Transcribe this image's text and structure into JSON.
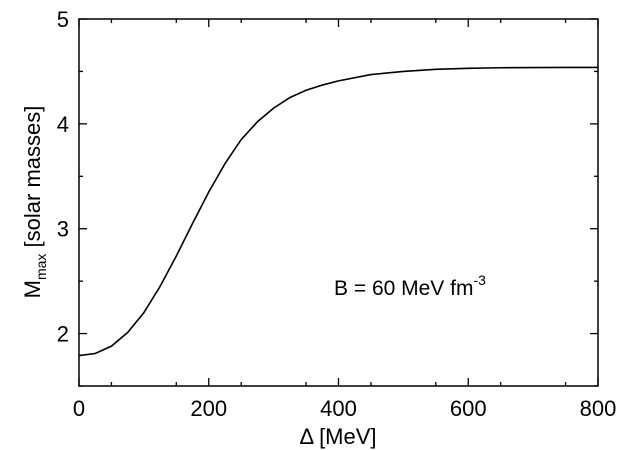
{
  "chart_data": {
    "type": "line",
    "title": "",
    "xlabel": "Δ [MeV]",
    "ylabel": {
      "main": "M",
      "sub": "max",
      "rest": " [solar masses]"
    },
    "xlim": [
      0,
      800
    ],
    "ylim": [
      1.5,
      5.0
    ],
    "x_ticks": [
      0,
      200,
      400,
      600,
      800
    ],
    "x_tick_labels": [
      "0",
      "200",
      "400",
      "600",
      "800"
    ],
    "y_ticks": [
      2,
      3,
      4,
      5
    ],
    "y_tick_labels": [
      "2",
      "3",
      "4",
      "5"
    ],
    "grid": false,
    "annotation": {
      "text": "B = 60 MeV fm",
      "superscript": "-3"
    },
    "series": [
      {
        "x": [
          0,
          25,
          50,
          75,
          100,
          125,
          150,
          175,
          200,
          225,
          250,
          275,
          300,
          325,
          350,
          375,
          400,
          450,
          500,
          550,
          600,
          650,
          700,
          750,
          800
        ],
        "y": [
          1.79,
          1.81,
          1.88,
          2.01,
          2.2,
          2.45,
          2.74,
          3.05,
          3.35,
          3.62,
          3.85,
          4.02,
          4.15,
          4.25,
          4.32,
          4.37,
          4.41,
          4.47,
          4.5,
          4.52,
          4.53,
          4.535,
          4.537,
          4.538,
          4.538
        ]
      }
    ]
  }
}
